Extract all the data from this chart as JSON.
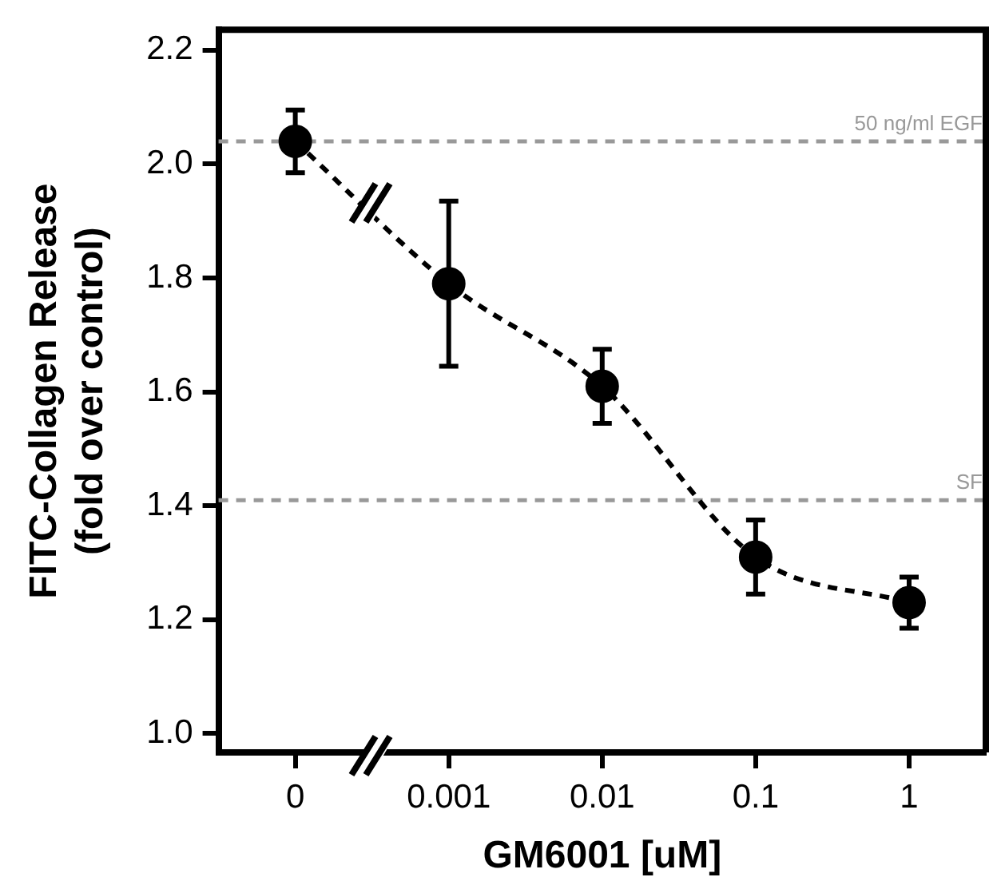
{
  "chart_data": {
    "type": "line",
    "xlabel": "GM6001 [uM]",
    "ylabel": "FITC-Collagen Release\n(fold over control)",
    "categories": [
      "0",
      "0.001",
      "0.01",
      "0.1",
      "1"
    ],
    "series": [
      {
        "color": "#000000",
        "values": [
          2.04,
          1.79,
          1.61,
          1.31,
          1.23
        ],
        "errors": [
          0.055,
          0.145,
          0.065,
          0.065,
          0.045
        ]
      }
    ],
    "ylim": [
      0.967,
      2.236
    ],
    "yticks": [
      {
        "value": 1,
        "label": "1.0"
      },
      1.2,
      1.4,
      1.6,
      1.8,
      {
        "value": 2,
        "label": "2.0"
      },
      2.2
    ],
    "ref_lines": [
      {
        "axis": "y",
        "value": 2.04,
        "label": "50 ng/ml EGF",
        "color": "#999999",
        "line_style": "dashed"
      },
      {
        "axis": "y",
        "value": 1.41,
        "label": "SF",
        "color": "#999999",
        "line_style": "dashed"
      }
    ],
    "marker": "circle",
    "line_style": "dashed",
    "grid": false,
    "legend": false
  }
}
